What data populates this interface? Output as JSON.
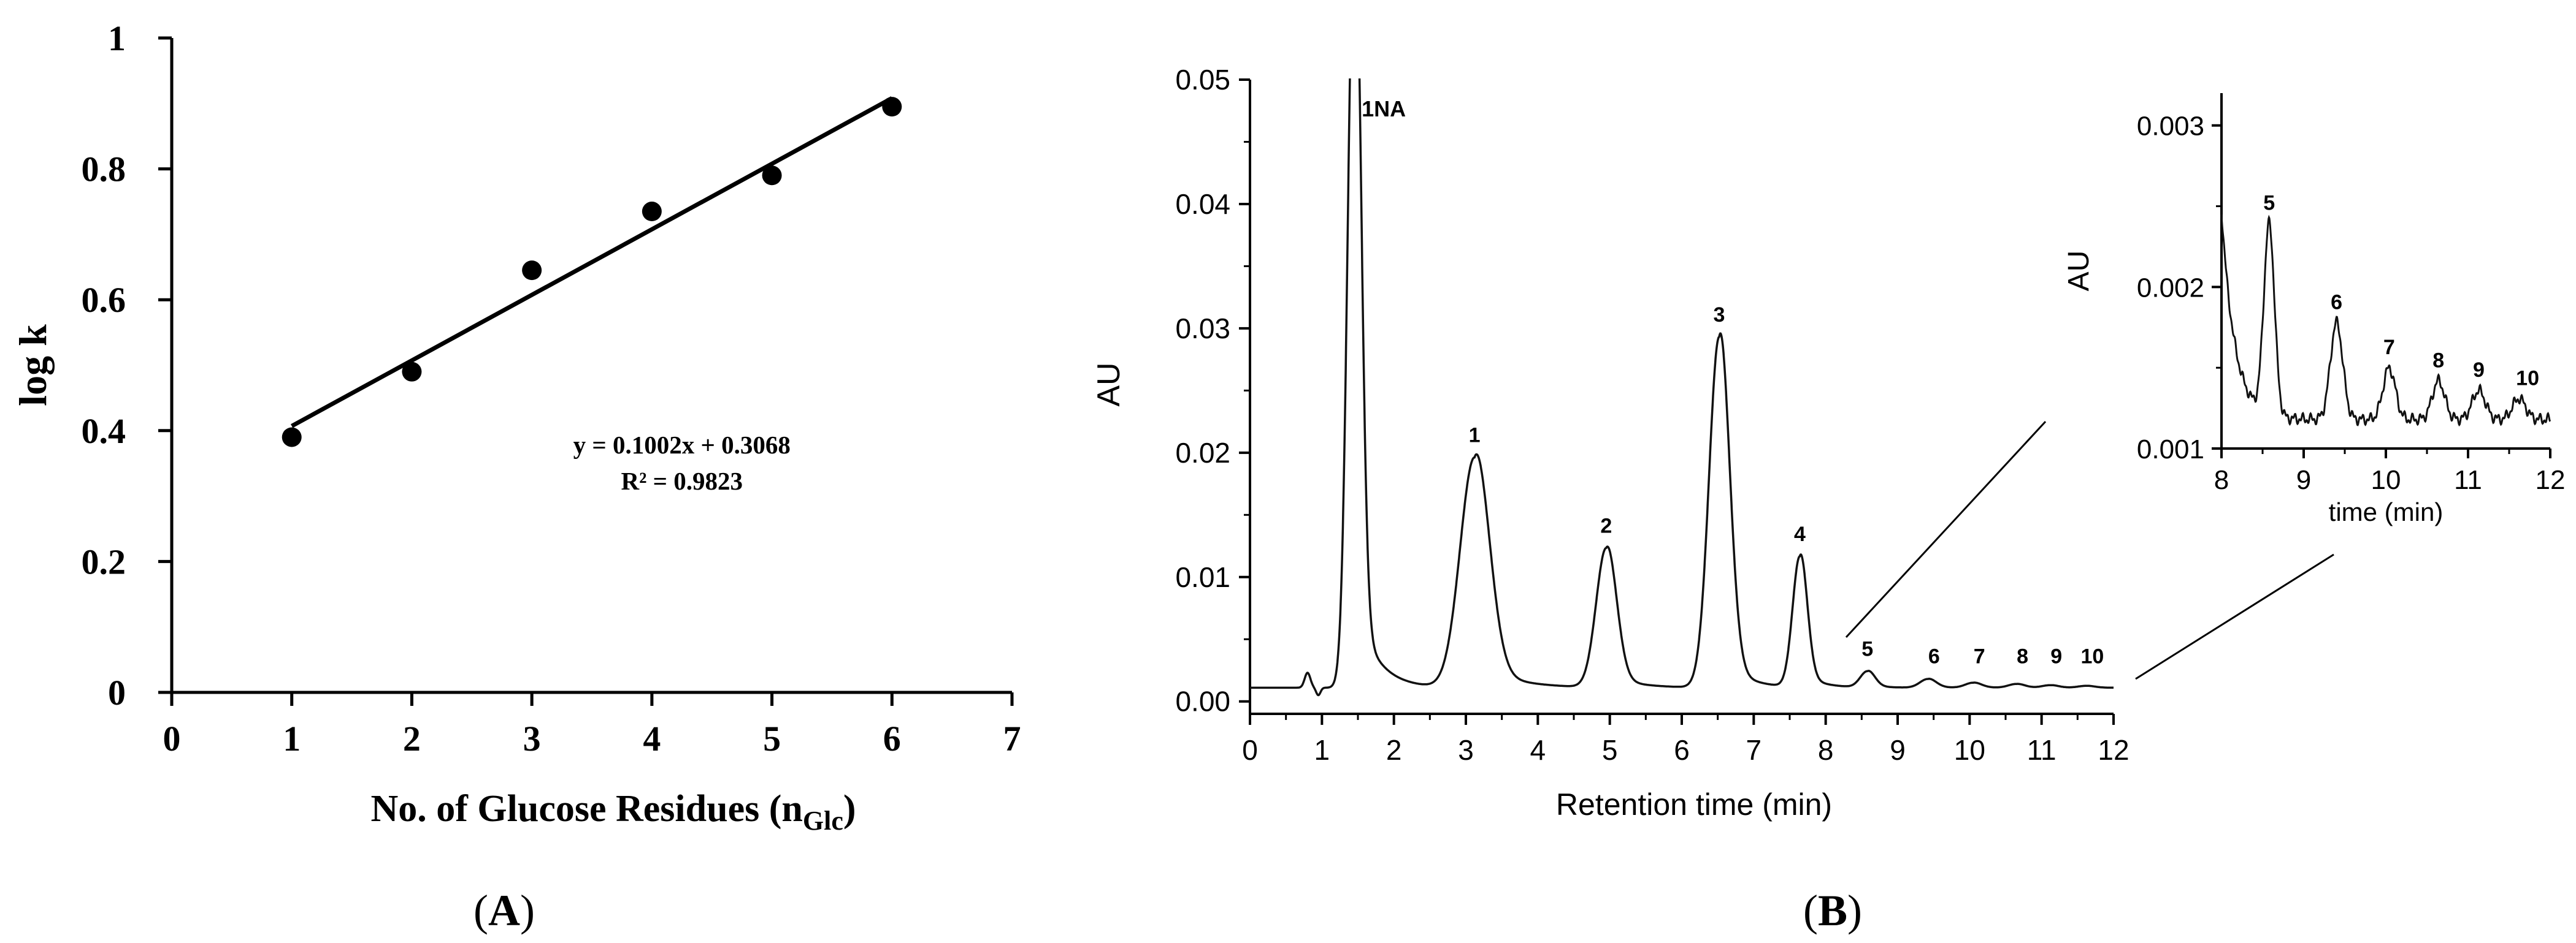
{
  "chart_data": [
    {
      "id": "A",
      "type": "scatter",
      "panel_label": "A",
      "title": "",
      "xlabel": "No. of Glucose Residues (n",
      "xlabel_subscript": "Glc",
      "xlabel_close": ")",
      "ylabel": "log k",
      "xlim": [
        0,
        7
      ],
      "ylim": [
        0,
        1
      ],
      "x_ticks": [
        0,
        1,
        2,
        3,
        4,
        5,
        6,
        7
      ],
      "y_ticks": [
        0,
        0.2,
        0.4,
        0.6,
        0.8,
        1
      ],
      "y_tick_labels": [
        "0",
        "0.2",
        "0.4",
        "0.6",
        "0.8",
        "1"
      ],
      "points": {
        "x": [
          1,
          2,
          3,
          4,
          5,
          6
        ],
        "y": [
          0.39,
          0.49,
          0.645,
          0.735,
          0.79,
          0.895
        ]
      },
      "fit": {
        "slope": 0.1002,
        "intercept": 0.3068,
        "x_range": [
          1,
          6
        ]
      },
      "equation": "y = 0.1002x + 0.3068",
      "r_squared": "R² = 0.9823"
    },
    {
      "id": "B",
      "type": "line",
      "panel_label": "B",
      "title": "",
      "xlabel": "Retention time (min)",
      "ylabel": "AU",
      "xlim": [
        0,
        12
      ],
      "ylim": [
        -0.001,
        0.05
      ],
      "x_ticks": [
        0,
        1,
        2,
        3,
        4,
        5,
        6,
        7,
        8,
        9,
        10,
        11,
        12
      ],
      "y_ticks": [
        0,
        0.01,
        0.02,
        0.03,
        0.04,
        0.05
      ],
      "y_tick_labels": [
        "0.00",
        "0.01",
        "0.02",
        "0.03",
        "0.04",
        "0.05"
      ],
      "baseline": 0.0011,
      "noise_blips": [
        {
          "center": 0.8,
          "height": 0.0012,
          "width": 0.04
        },
        {
          "center": 0.95,
          "height": -0.0006,
          "width": 0.03
        }
      ],
      "peaks": [
        {
          "label": "1NA",
          "center": 1.45,
          "height": 0.062,
          "width": 0.09,
          "tail": 0.28,
          "tail_fraction": 0.12
        },
        {
          "label": "1",
          "center": 3.12,
          "height": 0.0185,
          "width": 0.2,
          "tail": 0.45,
          "tail_fraction": 0.12
        },
        {
          "label": "2",
          "center": 4.95,
          "height": 0.0112,
          "width": 0.14,
          "tail": 0.35,
          "tail_fraction": 0.1
        },
        {
          "label": "3",
          "center": 6.52,
          "height": 0.0282,
          "width": 0.14,
          "tail": 0.3,
          "tail_fraction": 0.1
        },
        {
          "label": "4",
          "center": 7.64,
          "height": 0.0105,
          "width": 0.1,
          "tail": 0.25,
          "tail_fraction": 0.12
        },
        {
          "label": "5",
          "center": 8.58,
          "height": 0.0013,
          "width": 0.1,
          "tail": 0.2,
          "tail_fraction": 0.15
        },
        {
          "label": "6",
          "center": 9.42,
          "height": 0.0007,
          "width": 0.11,
          "tail": 0.2,
          "tail_fraction": 0.15
        },
        {
          "label": "7",
          "center": 10.05,
          "height": 0.0004,
          "width": 0.11,
          "tail": 0.2,
          "tail_fraction": 0.15
        },
        {
          "label": "8",
          "center": 10.65,
          "height": 0.0003,
          "width": 0.11,
          "tail": 0.2,
          "tail_fraction": 0.15
        },
        {
          "label": "9",
          "center": 11.12,
          "height": 0.0002,
          "width": 0.11,
          "tail": 0.2,
          "tail_fraction": 0.15
        },
        {
          "label": "10",
          "center": 11.62,
          "height": 0.00015,
          "width": 0.11,
          "tail": 0.2,
          "tail_fraction": 0.15
        }
      ]
    },
    {
      "id": "B-inset",
      "type": "line",
      "title": "",
      "xlabel": "time (min)",
      "ylabel": "AU",
      "xlim": [
        8,
        12
      ],
      "ylim": [
        0.001,
        0.0032
      ],
      "x_ticks": [
        8,
        9,
        10,
        11,
        12
      ],
      "y_ticks": [
        0.001,
        0.002,
        0.003
      ],
      "y_tick_labels": [
        "0.001",
        "0.002",
        "0.003"
      ],
      "baseline": 0.00118,
      "initial_decay": {
        "start": 8.0,
        "amplitude": 0.0013,
        "tau": 0.16
      },
      "peaks": [
        {
          "label": "5",
          "center": 8.58,
          "height": 0.00118,
          "width": 0.065
        },
        {
          "label": "6",
          "center": 9.4,
          "height": 0.0006,
          "width": 0.075
        },
        {
          "label": "7",
          "center": 10.04,
          "height": 0.00032,
          "width": 0.075
        },
        {
          "label": "8",
          "center": 10.64,
          "height": 0.00024,
          "width": 0.075
        },
        {
          "label": "9",
          "center": 11.13,
          "height": 0.00018,
          "width": 0.08
        },
        {
          "label": "10",
          "center": 11.62,
          "height": 0.00013,
          "width": 0.08
        }
      ]
    }
  ]
}
